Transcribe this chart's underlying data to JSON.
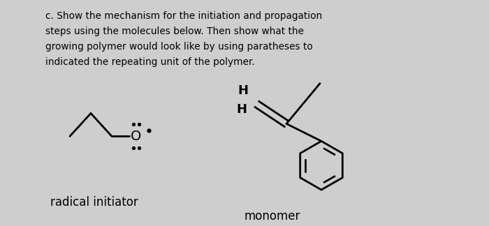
{
  "background_color": "#cecece",
  "text_color": "#000000",
  "title_lines": [
    "c. Show the mechanism for the initiation and propagation",
    "steps using the molecules below. Then show what the",
    "growing polymer would look like by using paratheses to",
    "indicated the repeating unit of the polymer."
  ],
  "label_radical": "radical initiator",
  "label_monomer": "monomer",
  "figsize": [
    7.0,
    3.24
  ],
  "dpi": 100
}
